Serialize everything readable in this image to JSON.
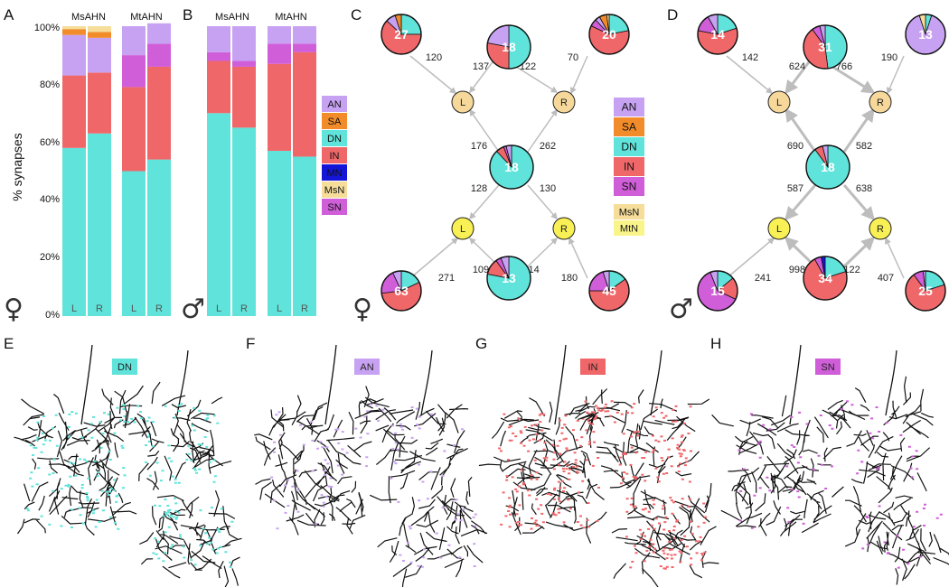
{
  "colors": {
    "AN": "#c8a2f2",
    "SA": "#f28c2a",
    "DN": "#5fe3da",
    "IN": "#f0676a",
    "MN": "#1515d8",
    "MsN": "#f6dd9a",
    "MtN": "#faf58a",
    "SN": "#cf5ed8",
    "nodeL": "#f6d89a",
    "nodeY": "#f8f054",
    "edge": "#bdbdbd"
  },
  "panels": {
    "A": "A",
    "B": "B",
    "C": "C",
    "D": "D",
    "E": "E",
    "F": "F",
    "G": "G",
    "H": "H"
  },
  "chart_data": [
    {
      "type": "bar",
      "panel": "A",
      "stacked": true,
      "title": "",
      "ylabel": "% synapses",
      "ylim": [
        0,
        100
      ],
      "yticks": [
        "0%",
        "20%",
        "40%",
        "60%",
        "80%",
        "100%"
      ],
      "groups": [
        "MsAHN",
        "MtAHN"
      ],
      "categories": [
        "L",
        "R",
        "L",
        "R"
      ],
      "sex_symbol": "♀",
      "series": [
        {
          "name": "DN",
          "values": [
            58,
            63,
            50,
            54
          ]
        },
        {
          "name": "IN",
          "values": [
            25,
            21,
            29,
            32
          ]
        },
        {
          "name": "SN",
          "values": [
            0,
            0,
            11,
            8
          ]
        },
        {
          "name": "AN",
          "values": [
            14,
            12,
            10,
            7
          ]
        },
        {
          "name": "SA",
          "values": [
            2,
            2,
            0,
            0
          ]
        },
        {
          "name": "MsN",
          "values": [
            1,
            2,
            0,
            0
          ]
        }
      ]
    },
    {
      "type": "bar",
      "panel": "B",
      "stacked": true,
      "title": "",
      "ylim": [
        0,
        100
      ],
      "groups": [
        "MsAHN",
        "MtAHN"
      ],
      "categories": [
        "L",
        "R",
        "L",
        "R"
      ],
      "sex_symbol": "♂",
      "series": [
        {
          "name": "DN",
          "values": [
            70,
            65,
            57,
            55
          ]
        },
        {
          "name": "IN",
          "values": [
            18,
            21,
            30,
            36
          ]
        },
        {
          "name": "SN",
          "values": [
            3,
            2,
            7,
            3
          ]
        },
        {
          "name": "AN",
          "values": [
            9,
            12,
            6,
            6
          ]
        }
      ]
    },
    {
      "type": "pie",
      "panel": "C",
      "network": "female",
      "center_count": "18",
      "inputs": {
        "top": [
          {
            "count": "27",
            "to": "L",
            "weight": "120",
            "slices": {
              "IN": 62,
              "DN": 25,
              "AN": 8,
              "SA": 5
            }
          },
          {
            "count": "18",
            "to": "L",
            "weight": "137",
            "slices": {
              "IN": 28,
              "DN": 50,
              "AN": 22
            }
          },
          {
            "count": "18",
            "to": "R",
            "weight": "122",
            "slices": {}
          },
          {
            "count": "20",
            "to": "R",
            "weight": "70",
            "slices": {
              "IN": 60,
              "DN": 22,
              "SA": 6,
              "SN": 6,
              "AN": 4,
              "MsN": 2
            }
          }
        ],
        "middle_up": [
          {
            "to": "L",
            "weight": "176"
          },
          {
            "to": "R",
            "weight": "262"
          }
        ],
        "middle_down": [
          {
            "to": "L",
            "weight": "128"
          },
          {
            "to": "R",
            "weight": "130"
          }
        ],
        "bottom": [
          {
            "count": "63",
            "to": "L",
            "weight": "271",
            "slices": {
              "IN": 55,
              "SN": 20,
              "DN": 18,
              "AN": 7
            }
          },
          {
            "count": "13",
            "to": "L",
            "weight": "109",
            "slices": {
              "DN": 78,
              "IN": 12,
              "AN": 6,
              "SN": 4
            }
          },
          {
            "count": "13",
            "to": "R",
            "weight": "114",
            "slices": {}
          },
          {
            "count": "45",
            "to": "R",
            "weight": "180",
            "slices": {
              "IN": 60,
              "SN": 20,
              "DN": 15,
              "AN": 5
            }
          }
        ]
      },
      "center_slices": {
        "DN": 88,
        "IN": 6,
        "AN": 4,
        "SN": 2
      },
      "sex_symbol": "♀"
    },
    {
      "type": "pie",
      "panel": "D",
      "network": "male",
      "center_count": "18",
      "inputs": {
        "top": [
          {
            "count": "14",
            "to": "L",
            "weight": "142",
            "slices": {
              "IN": 58,
              "DN": 20,
              "SN": 14,
              "AN": 8
            }
          },
          {
            "count": "31",
            "to": "L",
            "weight": "624",
            "slices": {
              "IN": 42,
              "DN": 48,
              "SN": 6,
              "AN": 4
            }
          },
          {
            "count": "31",
            "to": "R",
            "weight": "766",
            "slices": {}
          },
          {
            "count": "13",
            "to": "R",
            "weight": "190",
            "slices": {
              "AN": 90,
              "MsN": 5,
              "DN": 5
            }
          }
        ],
        "middle_up": [
          {
            "to": "L",
            "weight": "690"
          },
          {
            "to": "R",
            "weight": "582"
          }
        ],
        "middle_down": [
          {
            "to": "L",
            "weight": "587"
          },
          {
            "to": "R",
            "weight": "638"
          }
        ],
        "bottom": [
          {
            "count": "15",
            "to": "L",
            "weight": "241",
            "slices": {
              "SN": 62,
              "IN": 18,
              "DN": 14,
              "AN": 6
            }
          },
          {
            "count": "34",
            "to": "L",
            "weight": "998",
            "slices": {
              "IN": 72,
              "DN": 20,
              "SN": 5,
              "MN": 3
            }
          },
          {
            "count": "34",
            "to": "R",
            "weight": "1,122",
            "slices": {}
          },
          {
            "count": "25",
            "to": "R",
            "weight": "407",
            "slices": {
              "IN": 70,
              "DN": 20,
              "SN": 8,
              "AN": 2
            }
          }
        ]
      },
      "center_slices": {
        "DN": 90,
        "IN": 6,
        "AN": 4
      },
      "sex_symbol": "♂"
    }
  ],
  "legend_A": [
    "AN",
    "SA",
    "DN",
    "IN",
    "MN",
    "MsN",
    "SN"
  ],
  "legend_C": [
    "AN",
    "SA",
    "DN",
    "IN",
    "SN"
  ],
  "legend_C2": [
    "MsN",
    "MtN"
  ],
  "node_labels": {
    "L": "L",
    "R": "R"
  },
  "morphology": [
    {
      "panel": "E",
      "tag": "DN",
      "color": "#5fe3da"
    },
    {
      "panel": "F",
      "tag": "AN",
      "color": "#c8a2f2"
    },
    {
      "panel": "G",
      "tag": "IN",
      "color": "#f0676a"
    },
    {
      "panel": "H",
      "tag": "SN",
      "color": "#cf5ed8"
    }
  ]
}
